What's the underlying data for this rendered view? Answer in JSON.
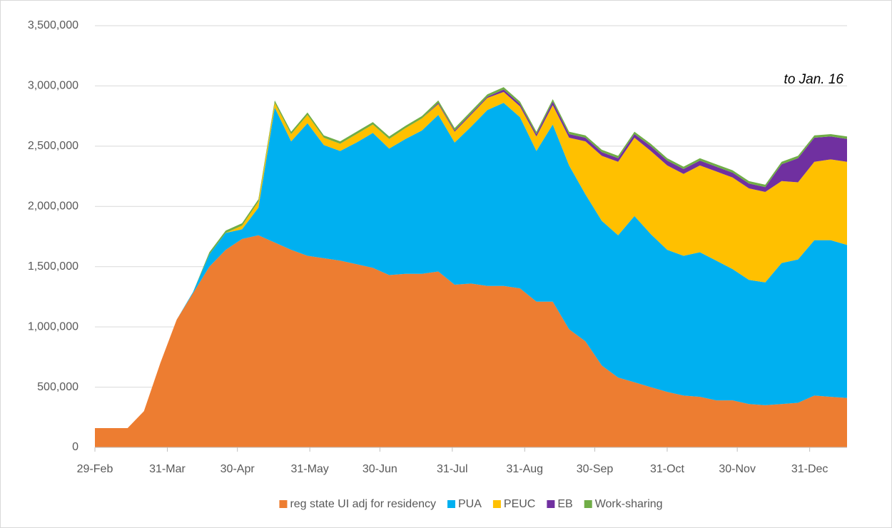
{
  "chart_data": {
    "type": "area",
    "annotation": "to Jan. 16",
    "x": [
      0,
      7,
      14,
      21,
      28,
      35,
      42,
      49,
      56,
      63,
      70,
      77,
      84,
      91,
      98,
      105,
      112,
      119,
      126,
      133,
      140,
      147,
      154,
      161,
      168,
      175,
      182,
      189,
      196,
      203,
      210,
      217,
      224,
      231,
      238,
      245,
      252,
      259,
      266,
      273,
      280,
      287,
      294,
      301,
      308,
      315,
      322
    ],
    "xlim": [
      0,
      322
    ],
    "xticks": [
      {
        "value": 0,
        "label": "29-Feb"
      },
      {
        "value": 31,
        "label": "31-Mar"
      },
      {
        "value": 61,
        "label": "30-Apr"
      },
      {
        "value": 92,
        "label": "31-May"
      },
      {
        "value": 122,
        "label": "30-Jun"
      },
      {
        "value": 153,
        "label": "31-Jul"
      },
      {
        "value": 184,
        "label": "31-Aug"
      },
      {
        "value": 214,
        "label": "30-Sep"
      },
      {
        "value": 245,
        "label": "31-Oct"
      },
      {
        "value": 275,
        "label": "30-Nov"
      },
      {
        "value": 306,
        "label": "31-Dec"
      }
    ],
    "ylim": [
      0,
      3500000
    ],
    "yticks": [
      0,
      {
        "value": 500000,
        "label": "500,000"
      },
      {
        "value": 1000000,
        "label": "1,000,000"
      },
      {
        "value": 1500000,
        "label": "1,500,000"
      },
      {
        "value": 2000000,
        "label": "2,000,000"
      },
      {
        "value": 2500000,
        "label": "2,500,000"
      },
      {
        "value": 3000000,
        "label": "3,000,000"
      },
      {
        "value": 3500000,
        "label": "3,500,000"
      }
    ],
    "grid": true,
    "legend": "bottom",
    "series": [
      {
        "name": "reg state UI adj for residency",
        "color": "#ed7d31",
        "values": [
          160000,
          160000,
          160000,
          300000,
          700000,
          1060000,
          1280000,
          1500000,
          1640000,
          1730000,
          1760000,
          1700000,
          1640000,
          1590000,
          1570000,
          1550000,
          1520000,
          1490000,
          1430000,
          1440000,
          1440000,
          1460000,
          1350000,
          1360000,
          1340000,
          1340000,
          1320000,
          1210000,
          1210000,
          980000,
          880000,
          680000,
          580000,
          540000,
          500000,
          460000,
          430000,
          420000,
          390000,
          390000,
          360000,
          350000,
          360000,
          370000,
          430000,
          420000,
          410000
        ]
      },
      {
        "name": "PUA",
        "color": "#00b0f0",
        "values": [
          0,
          0,
          0,
          0,
          0,
          0,
          10000,
          100000,
          140000,
          80000,
          230000,
          1120000,
          900000,
          1100000,
          940000,
          910000,
          1010000,
          1120000,
          1050000,
          1120000,
          1190000,
          1300000,
          1180000,
          1300000,
          1460000,
          1520000,
          1420000,
          1250000,
          1470000,
          1360000,
          1220000,
          1200000,
          1180000,
          1380000,
          1270000,
          1180000,
          1160000,
          1200000,
          1160000,
          1090000,
          1030000,
          1020000,
          1170000,
          1190000,
          1290000,
          1300000,
          1270000
        ]
      },
      {
        "name": "PEUC",
        "color": "#ffc000",
        "values": [
          0,
          0,
          0,
          0,
          0,
          0,
          0,
          0,
          0,
          30000,
          50000,
          40000,
          60000,
          70000,
          60000,
          60000,
          70000,
          70000,
          80000,
          90000,
          100000,
          90000,
          90000,
          100000,
          100000,
          90000,
          90000,
          120000,
          160000,
          230000,
          440000,
          540000,
          610000,
          650000,
          690000,
          700000,
          680000,
          720000,
          740000,
          760000,
          760000,
          750000,
          680000,
          640000,
          650000,
          670000,
          690000
        ]
      },
      {
        "name": "EB",
        "color": "#7030a0",
        "values": [
          0,
          0,
          0,
          0,
          0,
          0,
          0,
          0,
          0,
          0,
          0,
          0,
          0,
          0,
          0,
          0,
          0,
          0,
          0,
          0,
          0,
          10000,
          10000,
          10000,
          10000,
          20000,
          20000,
          20000,
          30000,
          30000,
          30000,
          30000,
          30000,
          30000,
          40000,
          40000,
          40000,
          40000,
          40000,
          40000,
          40000,
          40000,
          140000,
          200000,
          200000,
          190000,
          190000
        ]
      },
      {
        "name": "Work-sharing",
        "color": "#70ad47",
        "values": [
          0,
          0,
          0,
          0,
          0,
          0,
          0,
          20000,
          20000,
          20000,
          20000,
          20000,
          20000,
          20000,
          20000,
          20000,
          20000,
          20000,
          20000,
          20000,
          20000,
          20000,
          20000,
          20000,
          20000,
          20000,
          20000,
          20000,
          20000,
          20000,
          20000,
          20000,
          20000,
          20000,
          20000,
          20000,
          20000,
          20000,
          20000,
          20000,
          20000,
          20000,
          20000,
          20000,
          20000,
          20000,
          20000
        ]
      }
    ]
  }
}
